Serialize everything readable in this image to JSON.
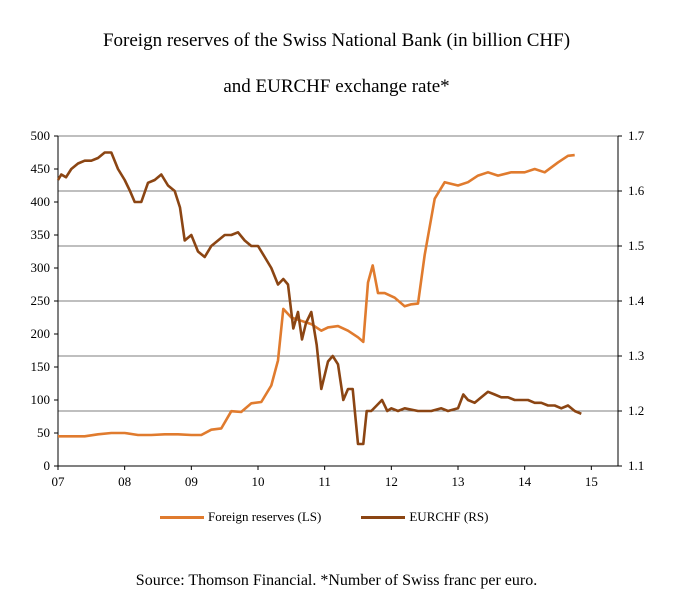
{
  "chart_data": {
    "type": "line",
    "title_line1": "Foreign reserves of the Swiss National Bank (in billion CHF)",
    "title_line2": "and EURCHF exchange rate*",
    "source": "Source: Thomson Financial. *Number of Swiss franc per euro.",
    "x_tick_labels": [
      "07",
      "08",
      "09",
      "10",
      "11",
      "12",
      "13",
      "14",
      "15"
    ],
    "x_ticks": [
      2007,
      2008,
      2009,
      2010,
      2011,
      2012,
      2013,
      2014,
      2015
    ],
    "xlim": [
      2007,
      2015.4
    ],
    "y_left_ticks": [
      0,
      50,
      100,
      150,
      200,
      250,
      300,
      350,
      400,
      450,
      500
    ],
    "y_left_lim": [
      0,
      500
    ],
    "y_right_ticks": [
      1.1,
      1.2,
      1.3,
      1.4,
      1.5,
      1.6,
      1.7
    ],
    "y_right_lim": [
      1.1,
      1.7
    ],
    "right_gridlines": true,
    "legend_position": "bottom",
    "colors": {
      "reserves": "#e07b2e",
      "eurchf": "#8b4513",
      "grid": "#7f7f7f",
      "axis": "#000000"
    },
    "series": [
      {
        "name": "Foreign reserves (LS)",
        "axis": "left",
        "x": [
          2007.0,
          2007.2,
          2007.4,
          2007.6,
          2007.8,
          2008.0,
          2008.2,
          2008.4,
          2008.6,
          2008.8,
          2009.0,
          2009.15,
          2009.3,
          2009.45,
          2009.6,
          2009.75,
          2009.9,
          2010.05,
          2010.2,
          2010.3,
          2010.38,
          2010.5,
          2010.65,
          2010.8,
          2010.95,
          2011.05,
          2011.2,
          2011.35,
          2011.5,
          2011.58,
          2011.65,
          2011.72,
          2011.8,
          2011.9,
          2012.05,
          2012.2,
          2012.3,
          2012.4,
          2012.5,
          2012.65,
          2012.8,
          2013.0,
          2013.15,
          2013.3,
          2013.45,
          2013.6,
          2013.8,
          2014.0,
          2014.15,
          2014.3,
          2014.5,
          2014.65,
          2014.75
        ],
        "values": [
          45,
          45,
          45,
          48,
          50,
          50,
          47,
          47,
          48,
          48,
          47,
          47,
          55,
          57,
          83,
          82,
          95,
          97,
          122,
          160,
          238,
          225,
          220,
          215,
          205,
          210,
          212,
          205,
          195,
          188,
          278,
          304,
          262,
          262,
          255,
          242,
          245,
          246,
          320,
          405,
          430,
          425,
          430,
          440,
          445,
          440,
          445,
          445,
          450,
          445,
          460,
          470,
          471
        ]
      },
      {
        "name": "EURCHF (RS)",
        "axis": "right",
        "x": [
          2007.0,
          2007.05,
          2007.12,
          2007.2,
          2007.3,
          2007.4,
          2007.5,
          2007.6,
          2007.7,
          2007.8,
          2007.9,
          2008.0,
          2008.08,
          2008.15,
          2008.25,
          2008.35,
          2008.45,
          2008.55,
          2008.65,
          2008.75,
          2008.83,
          2008.9,
          2009.0,
          2009.1,
          2009.2,
          2009.3,
          2009.4,
          2009.5,
          2009.6,
          2009.7,
          2009.8,
          2009.9,
          2010.0,
          2010.1,
          2010.2,
          2010.3,
          2010.38,
          2010.45,
          2010.53,
          2010.6,
          2010.66,
          2010.72,
          2010.8,
          2010.88,
          2010.95,
          2011.05,
          2011.12,
          2011.2,
          2011.28,
          2011.35,
          2011.42,
          2011.5,
          2011.58,
          2011.63,
          2011.7,
          2011.78,
          2011.86,
          2011.94,
          2012.0,
          2012.1,
          2012.2,
          2012.4,
          2012.6,
          2012.75,
          2012.85,
          2013.0,
          2013.08,
          2013.15,
          2013.25,
          2013.35,
          2013.45,
          2013.55,
          2013.65,
          2013.75,
          2013.85,
          2013.95,
          2014.05,
          2014.15,
          2014.25,
          2014.35,
          2014.45,
          2014.55,
          2014.65,
          2014.75,
          2014.85
        ],
        "values": [
          1.62,
          1.63,
          1.625,
          1.64,
          1.65,
          1.655,
          1.655,
          1.66,
          1.67,
          1.67,
          1.64,
          1.62,
          1.6,
          1.58,
          1.58,
          1.615,
          1.62,
          1.63,
          1.61,
          1.6,
          1.57,
          1.51,
          1.52,
          1.49,
          1.48,
          1.5,
          1.51,
          1.52,
          1.52,
          1.525,
          1.51,
          1.5,
          1.5,
          1.48,
          1.46,
          1.43,
          1.44,
          1.43,
          1.35,
          1.38,
          1.33,
          1.36,
          1.38,
          1.32,
          1.24,
          1.29,
          1.3,
          1.285,
          1.22,
          1.24,
          1.24,
          1.14,
          1.14,
          1.2,
          1.2,
          1.21,
          1.22,
          1.2,
          1.205,
          1.2,
          1.205,
          1.2,
          1.2,
          1.205,
          1.2,
          1.205,
          1.23,
          1.22,
          1.215,
          1.225,
          1.235,
          1.23,
          1.225,
          1.225,
          1.22,
          1.22,
          1.22,
          1.215,
          1.215,
          1.21,
          1.21,
          1.205,
          1.21,
          1.2,
          1.195
        ]
      }
    ]
  }
}
